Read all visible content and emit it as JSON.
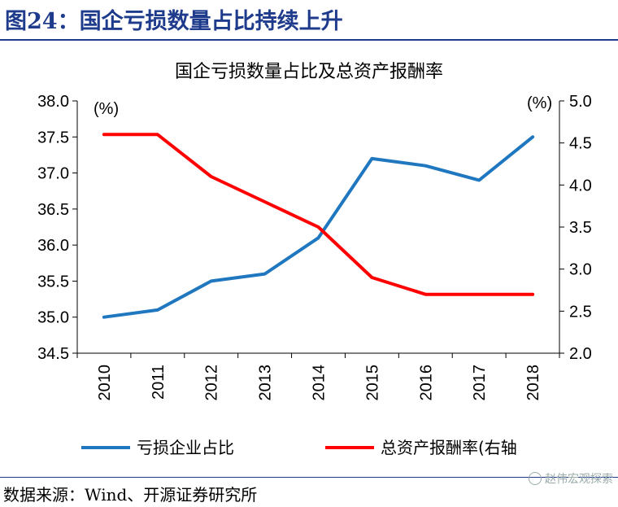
{
  "header": {
    "title": "图24：国企亏损数量占比持续上升"
  },
  "source": "数据来源：Wind、开源证券研究所",
  "watermark": "赵伟宏观探索",
  "chart_data": {
    "type": "line",
    "title": "国企亏损数量占比及总资产报酬率",
    "categories": [
      "2010",
      "2011",
      "2012",
      "2013",
      "2014",
      "2015",
      "2016",
      "2017",
      "2018"
    ],
    "y_left": {
      "unit_label": "(%)",
      "range": [
        34.5,
        38.0
      ],
      "ticks": [
        "34.5",
        "35.0",
        "35.5",
        "36.0",
        "36.5",
        "37.0",
        "37.5",
        "38.0"
      ]
    },
    "y_right": {
      "unit_label": "(%)",
      "range": [
        2.0,
        5.0
      ],
      "ticks": [
        "2.0",
        "2.5",
        "3.0",
        "3.5",
        "4.0",
        "4.5",
        "5.0"
      ]
    },
    "series": [
      {
        "name": "亏损企业占比",
        "axis": "left",
        "color": "#1f77c0",
        "values": [
          35.0,
          35.1,
          35.5,
          35.6,
          36.1,
          37.2,
          37.1,
          36.9,
          37.5
        ]
      },
      {
        "name": "总资产报酬率(右轴",
        "axis": "right",
        "color": "#ff0000",
        "values": [
          4.6,
          4.6,
          4.1,
          3.8,
          3.5,
          2.9,
          2.7,
          2.7,
          2.7
        ]
      }
    ],
    "grid": false,
    "legend_position": "bottom"
  }
}
